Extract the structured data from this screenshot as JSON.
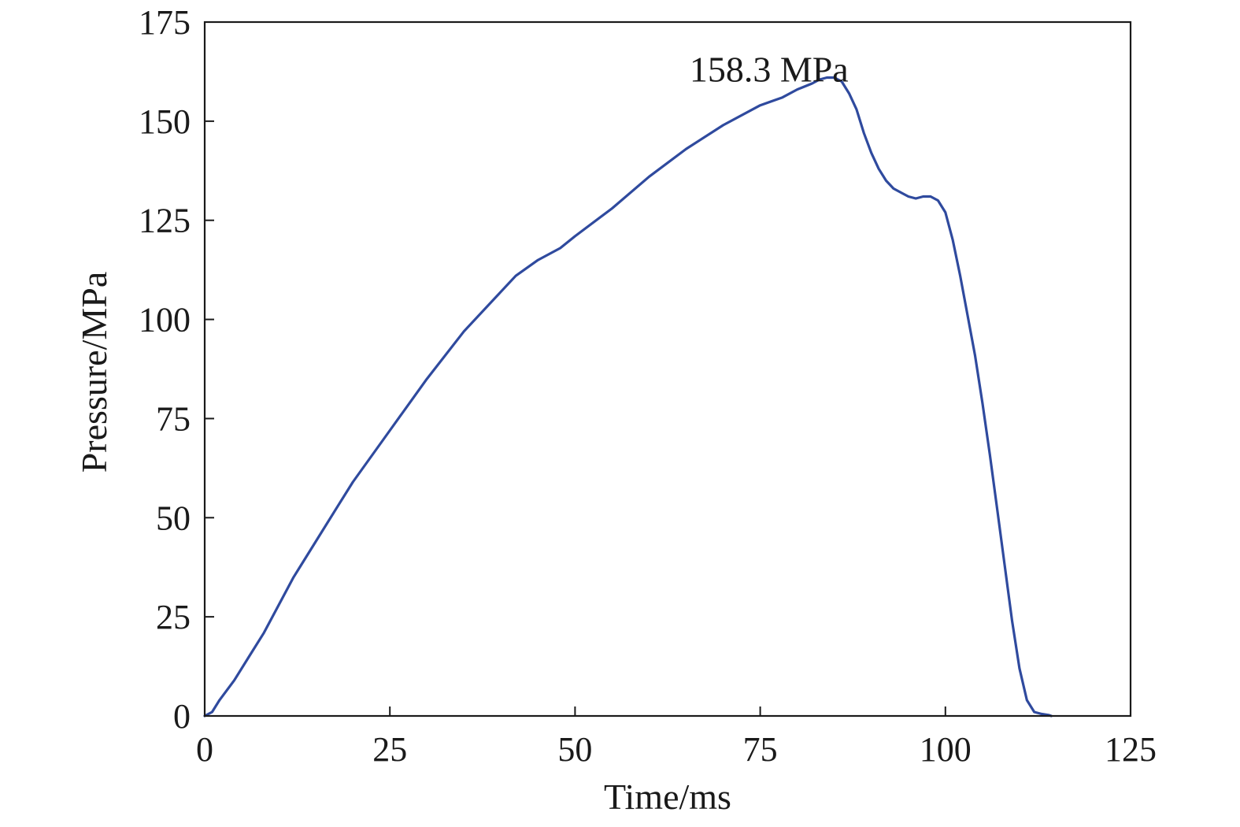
{
  "chart_data": {
    "type": "line",
    "title": "",
    "xlabel": "Time/ms",
    "ylabel": "Pressure/MPa",
    "xlim": [
      0,
      125
    ],
    "ylim": [
      0,
      175
    ],
    "xticks": [
      0,
      25,
      50,
      75,
      100,
      125
    ],
    "yticks": [
      0,
      25,
      50,
      75,
      100,
      125,
      150,
      175
    ],
    "grid": false,
    "legend": "none",
    "annotations": [
      {
        "text": "158.3 MPa",
        "x": 78,
        "y": 163
      }
    ],
    "series": [
      {
        "color": "#2f4a9e",
        "x": [
          0,
          1,
          2,
          4,
          6,
          8,
          10,
          12,
          15,
          18,
          20,
          25,
          30,
          35,
          40,
          42,
          45,
          48,
          50,
          55,
          60,
          65,
          70,
          75,
          78,
          80,
          82,
          83,
          84,
          85,
          86,
          87,
          88,
          89,
          90,
          91,
          92,
          93,
          94,
          95,
          96,
          97,
          98,
          99,
          100,
          101,
          102,
          103,
          104,
          105,
          106,
          107,
          108,
          109,
          110,
          111,
          112,
          113,
          114,
          114.3
        ],
        "y": [
          0,
          1,
          4,
          9,
          15,
          21,
          28,
          35,
          44,
          53,
          59,
          72,
          85,
          97,
          107,
          111,
          115,
          118,
          121,
          128,
          136,
          143,
          149,
          154,
          156,
          158,
          159.5,
          160.5,
          161,
          161,
          160,
          157,
          153,
          147,
          142,
          138,
          135,
          133,
          132,
          131,
          130.5,
          131,
          131,
          130,
          127,
          120,
          111,
          101,
          91,
          79,
          66,
          52,
          38,
          24,
          12,
          4,
          1,
          0.5,
          0.2,
          0
        ]
      }
    ]
  }
}
